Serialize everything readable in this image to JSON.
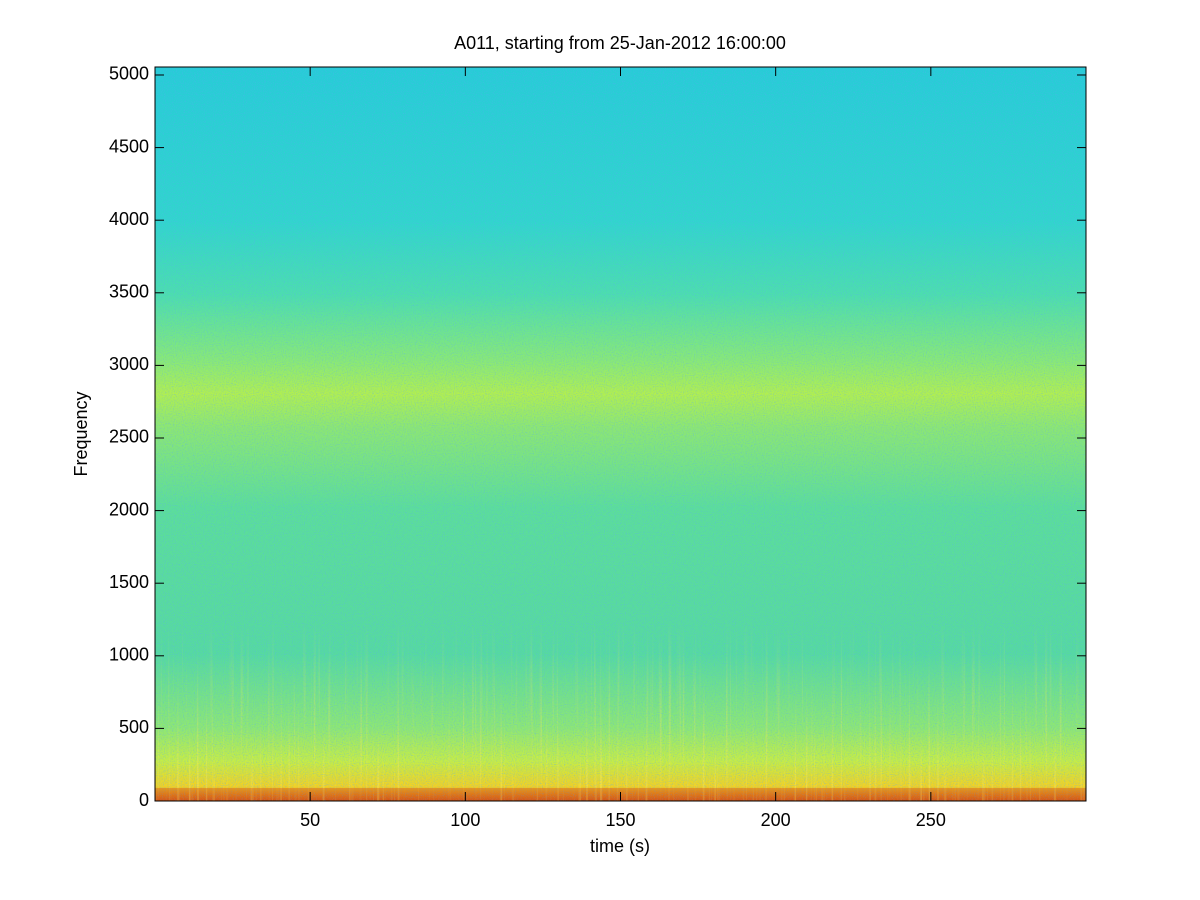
{
  "chart_data": {
    "type": "spectrogram",
    "title": "A011, starting from 25-Jan-2012 16:00:00",
    "x_label": "time (s)",
    "y_label": "Frequency",
    "xlim": [
      0,
      300
    ],
    "ylim": [
      0,
      5055
    ],
    "xticks": [
      50,
      100,
      150,
      200,
      250
    ],
    "yticks": [
      0,
      500,
      1000,
      1500,
      2000,
      2500,
      3000,
      3500,
      4000,
      4500,
      5000
    ]
  }
}
